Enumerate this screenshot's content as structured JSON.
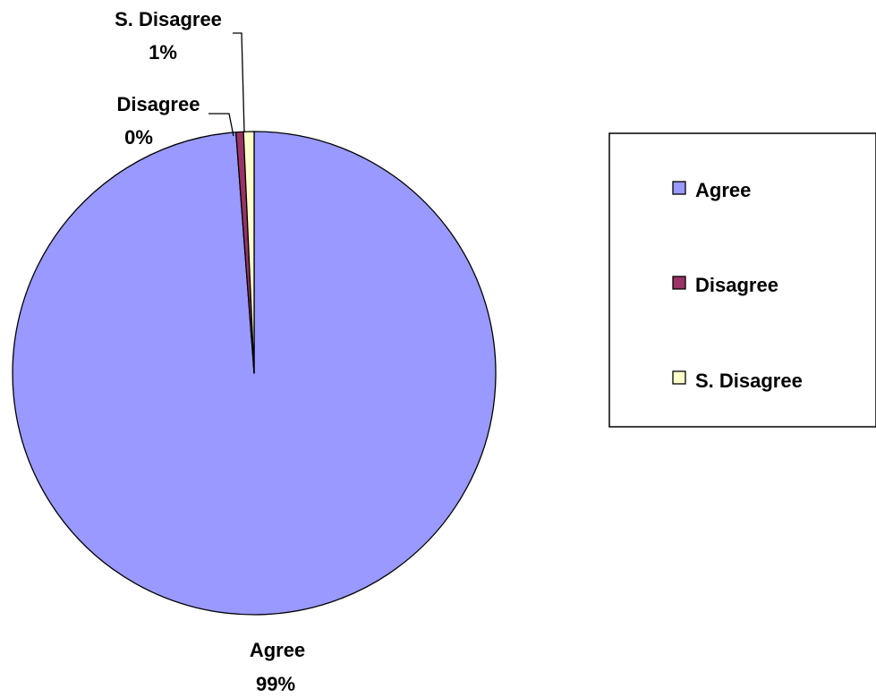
{
  "chart_data": {
    "type": "pie",
    "categories": [
      "Agree",
      "Disagree",
      "S. Disagree"
    ],
    "values": [
      98.8,
      0.5,
      0.7
    ],
    "display_percent": [
      "99%",
      "0%",
      "1%"
    ],
    "colors": [
      "#9999ff",
      "#993366",
      "#ffffcc"
    ],
    "legend": {
      "placement": "right",
      "entries": [
        "Agree",
        "Disagree",
        "S. Disagree"
      ]
    },
    "data_labels": [
      {
        "name": "Agree",
        "value": "99%"
      },
      {
        "name": "Disagree",
        "value": "0%"
      },
      {
        "name": "S. Disagree",
        "value": "1%"
      }
    ]
  }
}
